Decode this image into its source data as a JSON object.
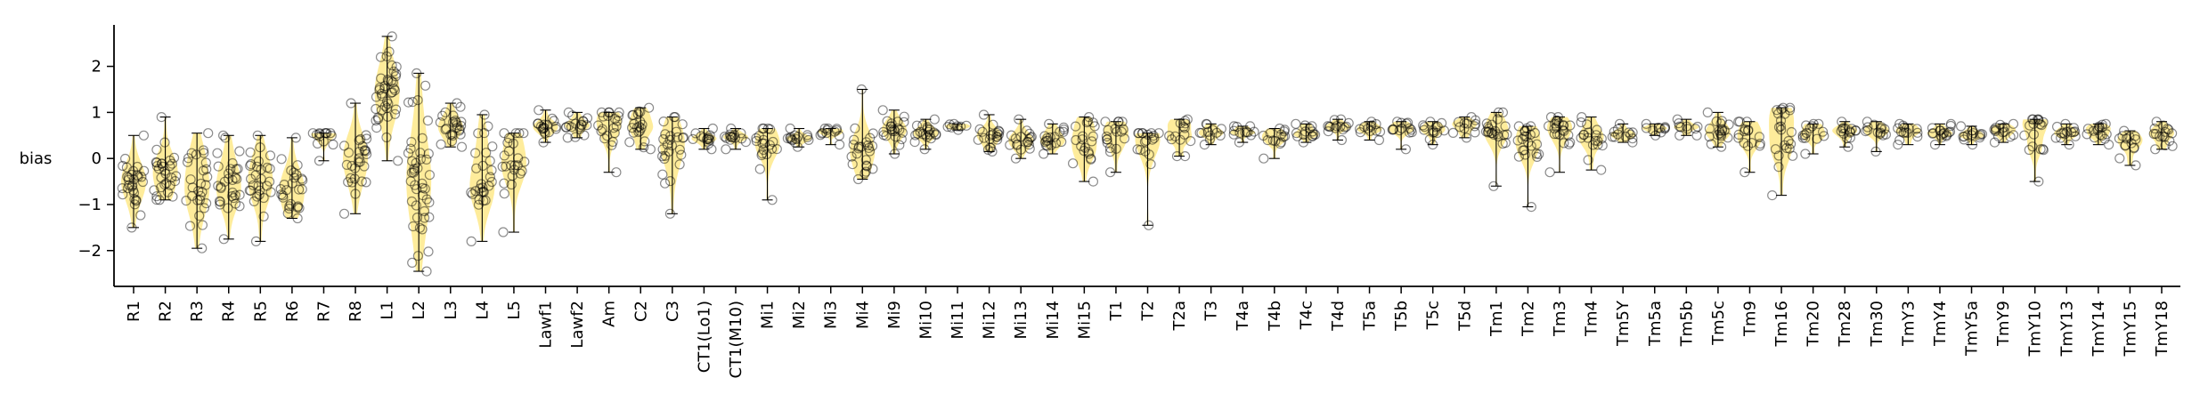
{
  "chart_data": {
    "type": "scatter",
    "subtype": "violin-strip",
    "ylabel": "bias",
    "xlabel": "",
    "title": "",
    "ylim": [
      -2.7,
      2.9
    ],
    "yticks": [
      -2,
      -1,
      0,
      1,
      2
    ],
    "grid": false,
    "legend": "none",
    "colors": {
      "violin": "#fde67a",
      "points": "#000000",
      "axis": "#000000"
    },
    "categories": [
      "R1",
      "R2",
      "R3",
      "R4",
      "R5",
      "R6",
      "R7",
      "R8",
      "L1",
      "L2",
      "L3",
      "L4",
      "L5",
      "Lawf1",
      "Lawf2",
      "Am",
      "C2",
      "C3",
      "CT1(Lo1)",
      "CT1(M10)",
      "Mi1",
      "Mi2",
      "Mi3",
      "Mi4",
      "Mi9",
      "Mi10",
      "Mi11",
      "Mi12",
      "Mi13",
      "Mi14",
      "Mi15",
      "T1",
      "T2",
      "T2a",
      "T3",
      "T4a",
      "T4b",
      "T4c",
      "T4d",
      "T5a",
      "T5b",
      "T5c",
      "T5d",
      "Tm1",
      "Tm2",
      "Tm3",
      "Tm4",
      "Tm5Y",
      "Tm5a",
      "Tm5b",
      "Tm5c",
      "Tm9",
      "Tm16",
      "Tm20",
      "Tm28",
      "Tm30",
      "TmY3",
      "TmY4",
      "TmY5a",
      "TmY9",
      "TmY10",
      "TmY13",
      "TmY14",
      "TmY15",
      "TmY18"
    ],
    "median": [
      -0.5,
      -0.3,
      -0.55,
      -0.55,
      -0.55,
      -0.6,
      0.45,
      -0.05,
      1.5,
      -0.5,
      0.65,
      -0.3,
      0.0,
      0.7,
      0.72,
      0.7,
      0.65,
      0.2,
      0.45,
      0.45,
      0.35,
      0.45,
      0.55,
      0.0,
      0.55,
      0.55,
      0.68,
      0.55,
      0.45,
      0.45,
      0.45,
      0.55,
      0.35,
      0.6,
      0.55,
      0.55,
      0.45,
      0.6,
      0.65,
      0.65,
      0.6,
      0.6,
      0.7,
      0.6,
      0.35,
      0.65,
      0.55,
      0.55,
      0.65,
      0.68,
      0.6,
      0.6,
      0.7,
      0.55,
      0.55,
      0.6,
      0.55,
      0.52,
      0.5,
      0.6,
      0.55,
      0.55,
      0.58,
      0.3,
      0.5
    ],
    "min": [
      -1.5,
      -0.9,
      -1.95,
      -1.75,
      -1.8,
      -1.3,
      -0.05,
      -1.2,
      -0.05,
      -2.45,
      0.25,
      -1.8,
      -1.6,
      0.35,
      0.45,
      -0.3,
      0.2,
      -1.2,
      0.2,
      0.2,
      -0.9,
      0.25,
      0.3,
      -0.45,
      0.1,
      0.2,
      0.62,
      0.15,
      0.0,
      0.1,
      -0.5,
      -0.3,
      -1.45,
      0.05,
      0.3,
      0.35,
      0.0,
      0.35,
      0.4,
      0.4,
      0.2,
      0.3,
      0.45,
      -0.6,
      -1.05,
      -0.3,
      -0.25,
      0.35,
      0.5,
      0.5,
      0.25,
      -0.3,
      -0.8,
      0.1,
      0.25,
      0.15,
      0.3,
      0.3,
      0.3,
      0.35,
      -0.5,
      0.3,
      0.3,
      -0.15,
      0.2
    ],
    "max": [
      0.5,
      0.9,
      0.55,
      0.5,
      0.5,
      0.45,
      0.55,
      1.2,
      2.65,
      1.85,
      1.2,
      0.95,
      0.55,
      1.05,
      1.0,
      1.0,
      1.1,
      0.9,
      0.65,
      0.65,
      0.65,
      0.65,
      0.65,
      1.5,
      1.05,
      0.85,
      0.75,
      0.95,
      0.85,
      0.75,
      0.9,
      0.8,
      0.55,
      0.85,
      0.75,
      0.7,
      0.65,
      0.75,
      0.85,
      0.8,
      0.8,
      0.8,
      0.9,
      1.0,
      0.7,
      0.9,
      0.9,
      0.75,
      0.75,
      0.85,
      1.0,
      0.8,
      1.1,
      0.75,
      0.8,
      0.8,
      0.75,
      0.75,
      0.7,
      0.75,
      0.85,
      0.75,
      0.75,
      0.6,
      0.8
    ],
    "n": [
      30,
      30,
      28,
      30,
      28,
      26,
      14,
      28,
      40,
      44,
      24,
      28,
      24,
      18,
      18,
      20,
      20,
      26,
      14,
      14,
      20,
      14,
      12,
      24,
      22,
      20,
      8,
      20,
      18,
      18,
      20,
      18,
      18,
      14,
      12,
      12,
      14,
      14,
      14,
      12,
      14,
      14,
      12,
      22,
      22,
      22,
      18,
      12,
      10,
      10,
      18,
      16,
      22,
      14,
      14,
      14,
      14,
      16,
      14,
      14,
      18,
      14,
      16,
      14,
      16
    ]
  }
}
